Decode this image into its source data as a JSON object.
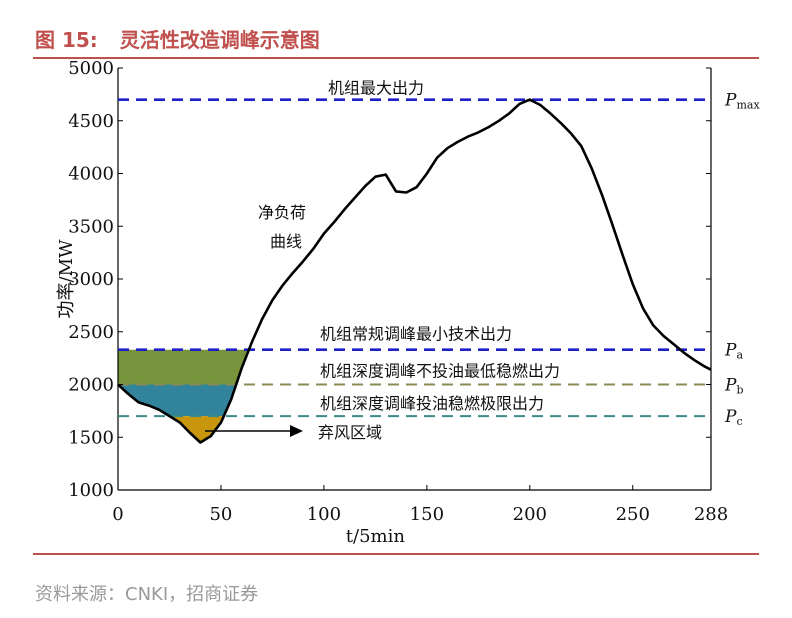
{
  "header": {
    "figure_number": "图 15:",
    "figure_title": "灵活性改造调峰示意图"
  },
  "footer": {
    "source": "资料来源：CNKI，招商证券"
  },
  "colors": {
    "accent": "#c0504d",
    "pmax_line": "#1f1fc8",
    "pa_line": "#1f1fc8",
    "pb_line": "#8a8a52",
    "pc_line": "#3a8a8a",
    "band_green": "#77933c",
    "band_blue": "#31849b",
    "band_gold": "#c8960c",
    "curve": "#000000"
  },
  "chart_data": {
    "type": "line",
    "title": "",
    "xlabel": "t/5min",
    "ylabel": "功率/MW",
    "xlim": [
      0,
      288
    ],
    "ylim": [
      1000,
      5000
    ],
    "x_ticks": [
      "0",
      "50",
      "100",
      "150",
      "200",
      "250",
      "288"
    ],
    "x_tick_values": [
      0,
      50,
      100,
      150,
      200,
      250,
      288
    ],
    "y_ticks": [
      "1000",
      "1500",
      "2000",
      "2500",
      "3000",
      "3500",
      "4000",
      "4500",
      "5000"
    ],
    "y_tick_values": [
      1000,
      1500,
      2000,
      2500,
      3000,
      3500,
      4000,
      4500,
      5000
    ],
    "series": [
      {
        "name": "净负荷曲线",
        "x": [
          0,
          5,
          10,
          15,
          20,
          25,
          30,
          35,
          40,
          45,
          50,
          55,
          60,
          65,
          70,
          75,
          80,
          85,
          90,
          95,
          100,
          105,
          110,
          115,
          120,
          125,
          130,
          135,
          140,
          145,
          150,
          155,
          160,
          165,
          170,
          175,
          180,
          185,
          190,
          195,
          200,
          205,
          210,
          215,
          220,
          225,
          230,
          235,
          240,
          245,
          250,
          255,
          260,
          265,
          270,
          275,
          280,
          285,
          288
        ],
        "y": [
          2000,
          1910,
          1830,
          1800,
          1760,
          1700,
          1640,
          1540,
          1450,
          1510,
          1640,
          1860,
          2150,
          2400,
          2620,
          2800,
          2940,
          3060,
          3170,
          3290,
          3430,
          3540,
          3660,
          3770,
          3880,
          3970,
          3990,
          3830,
          3820,
          3870,
          4000,
          4150,
          4240,
          4300,
          4350,
          4390,
          4440,
          4500,
          4570,
          4660,
          4700,
          4650,
          4570,
          4480,
          4380,
          4260,
          4050,
          3800,
          3520,
          3230,
          2950,
          2720,
          2560,
          2460,
          2380,
          2300,
          2230,
          2170,
          2140
        ]
      }
    ],
    "reference_lines": [
      {
        "label": "机组最大出力",
        "symbol": "P",
        "sub": "max",
        "y": 4700,
        "style": "dashed"
      },
      {
        "label": "机组常规调峰最小技术出力",
        "symbol": "P",
        "sub": "a",
        "y": 2330,
        "style": "dashed"
      },
      {
        "label": "机组深度调峰不投油最低稳燃出力",
        "symbol": "P",
        "sub": "b",
        "y": 2000,
        "style": "dashed"
      },
      {
        "label": "机组深度调峰投油稳燃极限出力",
        "symbol": "P",
        "sub": "c",
        "y": 1700,
        "style": "dashed"
      }
    ],
    "annotations": [
      {
        "text": "净负荷",
        "line": 1
      },
      {
        "text": "曲线",
        "line": 2
      },
      {
        "text": "弃风区域",
        "arrow": true
      }
    ],
    "legend": "none",
    "grid": false
  }
}
